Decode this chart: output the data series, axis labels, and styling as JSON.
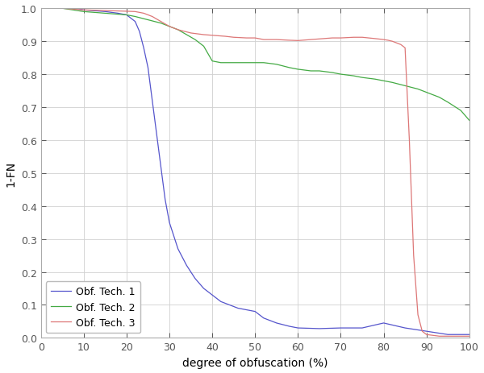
{
  "title": "",
  "xlabel": "degree of obfuscation (%)",
  "ylabel": "1-FN",
  "xlim": [
    0,
    100
  ],
  "ylim": [
    0,
    1.0
  ],
  "xticks": [
    0,
    10,
    20,
    30,
    40,
    50,
    60,
    70,
    80,
    90,
    100
  ],
  "yticks": [
    0,
    0.1,
    0.2,
    0.3,
    0.4,
    0.5,
    0.6,
    0.7,
    0.8,
    0.9,
    1.0
  ],
  "tech1_x": [
    0,
    2,
    5,
    8,
    10,
    12,
    15,
    18,
    20,
    21,
    22,
    23,
    24,
    25,
    26,
    27,
    28,
    29,
    30,
    32,
    34,
    36,
    38,
    40,
    42,
    44,
    46,
    48,
    50,
    52,
    55,
    58,
    60,
    65,
    70,
    75,
    80,
    85,
    90,
    95,
    100
  ],
  "tech1_y": [
    1.0,
    1.0,
    1.0,
    1.0,
    0.995,
    0.993,
    0.99,
    0.985,
    0.98,
    0.97,
    0.96,
    0.93,
    0.88,
    0.82,
    0.72,
    0.62,
    0.52,
    0.42,
    0.35,
    0.27,
    0.22,
    0.18,
    0.15,
    0.13,
    0.11,
    0.1,
    0.09,
    0.085,
    0.08,
    0.06,
    0.045,
    0.035,
    0.03,
    0.028,
    0.03,
    0.03,
    0.045,
    0.03,
    0.02,
    0.01,
    0.01
  ],
  "tech2_x": [
    0,
    5,
    10,
    15,
    20,
    22,
    25,
    28,
    30,
    32,
    34,
    36,
    38,
    40,
    42,
    45,
    48,
    50,
    52,
    55,
    58,
    60,
    63,
    65,
    68,
    70,
    73,
    75,
    78,
    80,
    82,
    85,
    88,
    90,
    93,
    95,
    98,
    100
  ],
  "tech2_y": [
    1.0,
    1.0,
    0.99,
    0.985,
    0.98,
    0.975,
    0.965,
    0.955,
    0.945,
    0.935,
    0.92,
    0.905,
    0.885,
    0.84,
    0.835,
    0.835,
    0.835,
    0.835,
    0.835,
    0.83,
    0.82,
    0.815,
    0.81,
    0.81,
    0.805,
    0.8,
    0.795,
    0.79,
    0.785,
    0.78,
    0.775,
    0.765,
    0.755,
    0.745,
    0.73,
    0.715,
    0.69,
    0.66
  ],
  "tech3_x": [
    0,
    5,
    10,
    15,
    20,
    22,
    24,
    26,
    28,
    30,
    32,
    35,
    38,
    40,
    43,
    45,
    48,
    50,
    52,
    55,
    58,
    60,
    63,
    65,
    68,
    70,
    73,
    75,
    78,
    80,
    81,
    82,
    83,
    84,
    85,
    86,
    87,
    88,
    89,
    90,
    93,
    95,
    98,
    100
  ],
  "tech3_y": [
    1.0,
    1.0,
    0.995,
    0.993,
    0.991,
    0.99,
    0.985,
    0.975,
    0.96,
    0.945,
    0.935,
    0.925,
    0.92,
    0.918,
    0.915,
    0.912,
    0.91,
    0.91,
    0.905,
    0.905,
    0.903,
    0.902,
    0.905,
    0.907,
    0.91,
    0.91,
    0.912,
    0.912,
    0.908,
    0.905,
    0.903,
    0.9,
    0.895,
    0.89,
    0.88,
    0.6,
    0.25,
    0.07,
    0.02,
    0.01,
    0.005,
    0.005,
    0.005,
    0.005
  ],
  "color_tech1": "#5555cc",
  "color_tech2": "#44aa44",
  "color_tech3": "#dd7777",
  "legend_labels": [
    "Obf. Tech. 1",
    "Obf. Tech. 2",
    "Obf. Tech. 3"
  ],
  "legend_loc": "lower left",
  "linewidth": 0.9,
  "figure_bg": "#ffffff",
  "axes_bg": "#ffffff",
  "grid_color": "#d0d0d0",
  "spine_color": "#aaaaaa",
  "tick_color": "#555555",
  "label_fontsize": 10,
  "tick_fontsize": 9,
  "legend_fontsize": 9
}
